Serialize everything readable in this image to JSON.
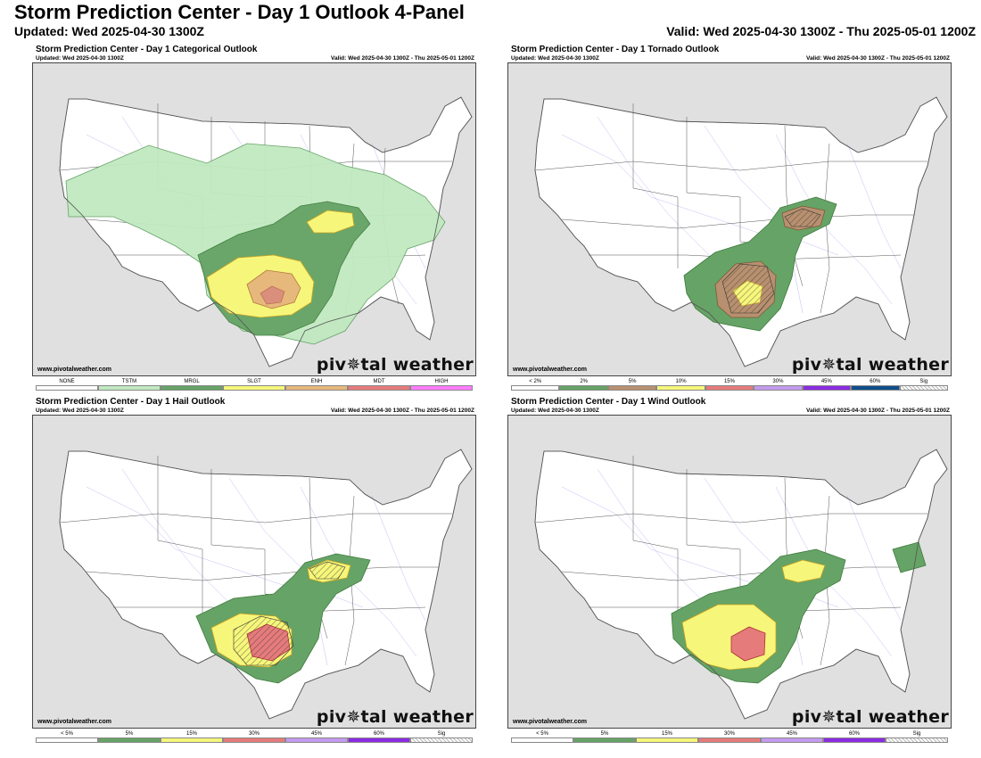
{
  "header": {
    "title": "Storm Prediction Center - Day 1 Outlook 4-Panel",
    "updated": "Updated: Wed 2025-04-30 1300Z",
    "valid": "Valid: Wed 2025-04-30 1300Z - Thu 2025-05-01 1200Z"
  },
  "panels": [
    {
      "title": "Storm Prediction Center - Day 1 Categorical Outlook",
      "updated": "Updated: Wed 2025-04-30 1300Z",
      "valid": "Valid: Wed 2025-04-30 1300Z - Thu 2025-05-01 1200Z",
      "site": "www.pivotalweather.com",
      "logo": "piv✵tal weather",
      "legend": [
        {
          "label": "NONE",
          "color": "#ffffff"
        },
        {
          "label": "TSTM",
          "color": "#c1e9c1"
        },
        {
          "label": "MRGL",
          "color": "#66a366"
        },
        {
          "label": "SLGT",
          "color": "#f6f67b"
        },
        {
          "label": "ENH",
          "color": "#e6b87b"
        },
        {
          "label": "MDT",
          "color": "#e67b7b"
        },
        {
          "label": "HIGH",
          "color": "#ff7bff"
        }
      ]
    },
    {
      "title": "Storm Prediction Center - Day 1 Tornado Outlook",
      "updated": "Updated: Wed 2025-04-30 1300Z",
      "valid": "Valid: Wed 2025-04-30 1300Z - Thu 2025-05-01 1200Z",
      "site": "www.pivotalweather.com",
      "logo": "piv✵tal weather",
      "legend": [
        {
          "label": "< 2%",
          "color": "#ffffff"
        },
        {
          "label": "2%",
          "color": "#66a366"
        },
        {
          "label": "5%",
          "color": "#b8906f"
        },
        {
          "label": "10%",
          "color": "#f6f67b"
        },
        {
          "label": "15%",
          "color": "#e67b7b"
        },
        {
          "label": "30%",
          "color": "#c39aef"
        },
        {
          "label": "45%",
          "color": "#8a2be2"
        },
        {
          "label": "60%",
          "color": "#104e8b"
        },
        {
          "label": "Sig",
          "color": "hatch"
        }
      ]
    },
    {
      "title": "Storm Prediction Center - Day 1 Hail Outlook",
      "updated": "Updated: Wed 2025-04-30 1300Z",
      "valid": "Valid: Wed 2025-04-30 1300Z - Thu 2025-05-01 1200Z",
      "site": "www.pivotalweather.com",
      "logo": "piv✵tal weather",
      "legend": [
        {
          "label": "< 5%",
          "color": "#ffffff"
        },
        {
          "label": "5%",
          "color": "#66a366"
        },
        {
          "label": "15%",
          "color": "#f6f67b"
        },
        {
          "label": "30%",
          "color": "#e67b7b"
        },
        {
          "label": "45%",
          "color": "#c39aef"
        },
        {
          "label": "60%",
          "color": "#8a2be2"
        },
        {
          "label": "Sig",
          "color": "hatch"
        }
      ]
    },
    {
      "title": "Storm Prediction Center - Day 1 Wind Outlook",
      "updated": "Updated: Wed 2025-04-30 1300Z",
      "valid": "Valid: Wed 2025-04-30 1300Z - Thu 2025-05-01 1200Z",
      "site": "www.pivotalweather.com",
      "logo": "piv✵tal weather",
      "legend": [
        {
          "label": "< 5%",
          "color": "#ffffff"
        },
        {
          "label": "5%",
          "color": "#66a366"
        },
        {
          "label": "15%",
          "color": "#f6f67b"
        },
        {
          "label": "30%",
          "color": "#e67b7b"
        },
        {
          "label": "45%",
          "color": "#c39aef"
        },
        {
          "label": "60%",
          "color": "#8a2be2"
        },
        {
          "label": "Sig",
          "color": "hatch"
        }
      ]
    }
  ]
}
